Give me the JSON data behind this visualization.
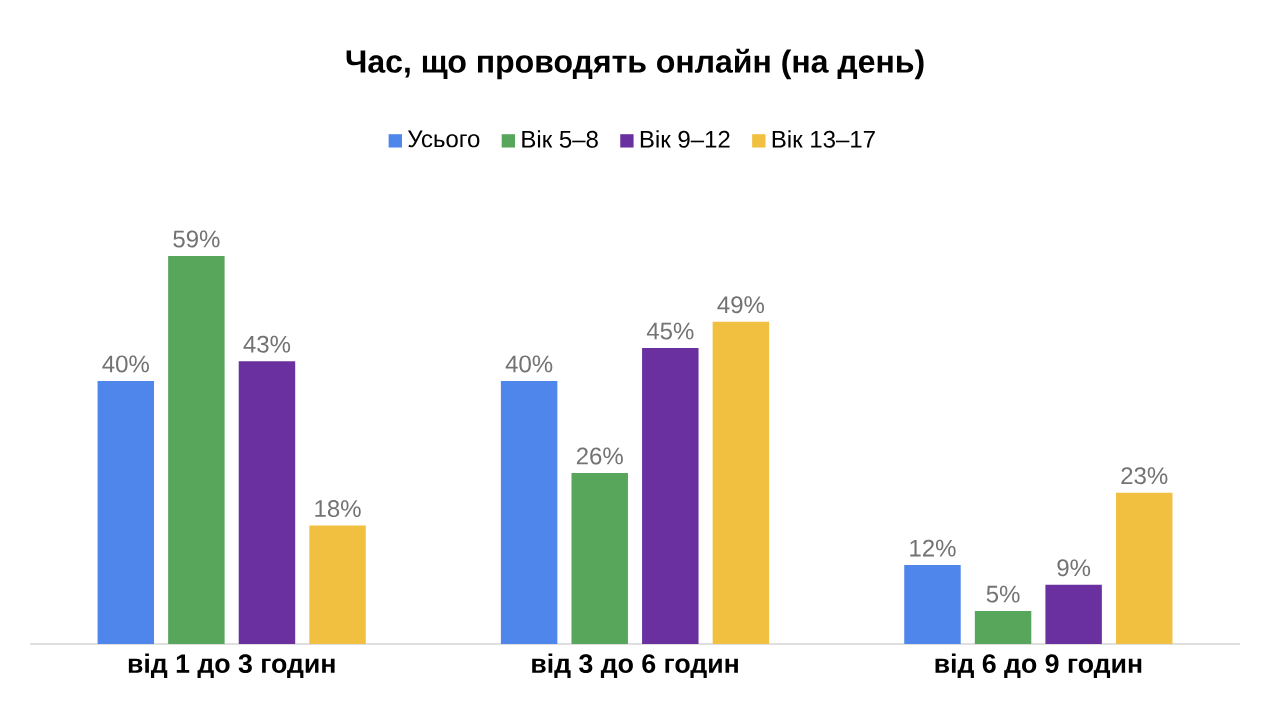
{
  "chart_data": {
    "type": "bar",
    "title": "Час, що проводять онлайн (на день)",
    "categories": [
      "від 1 до 3 годин",
      "від 3 до 6 годин",
      "від 6 до 9 годин"
    ],
    "series": [
      {
        "name": "Усього",
        "color": "#4f86ec",
        "values": [
          40,
          40,
          12
        ],
        "value_labels": [
          "40%",
          "40%",
          "12%"
        ]
      },
      {
        "name": "Вік 5–8",
        "color": "#58a55c",
        "values": [
          59,
          26,
          5
        ],
        "value_labels": [
          "59%",
          "26%",
          "5%"
        ]
      },
      {
        "name": "Вік 9–12",
        "color": "#6a30a0",
        "values": [
          43,
          45,
          9
        ],
        "value_labels": [
          "43%",
          "45%",
          "9%"
        ]
      },
      {
        "name": "Вік 13–17",
        "color": "#f2c040",
        "values": [
          18,
          49,
          23
        ],
        "value_labels": [
          "18%",
          "49%",
          "23%"
        ]
      }
    ],
    "legend": "top"
  }
}
